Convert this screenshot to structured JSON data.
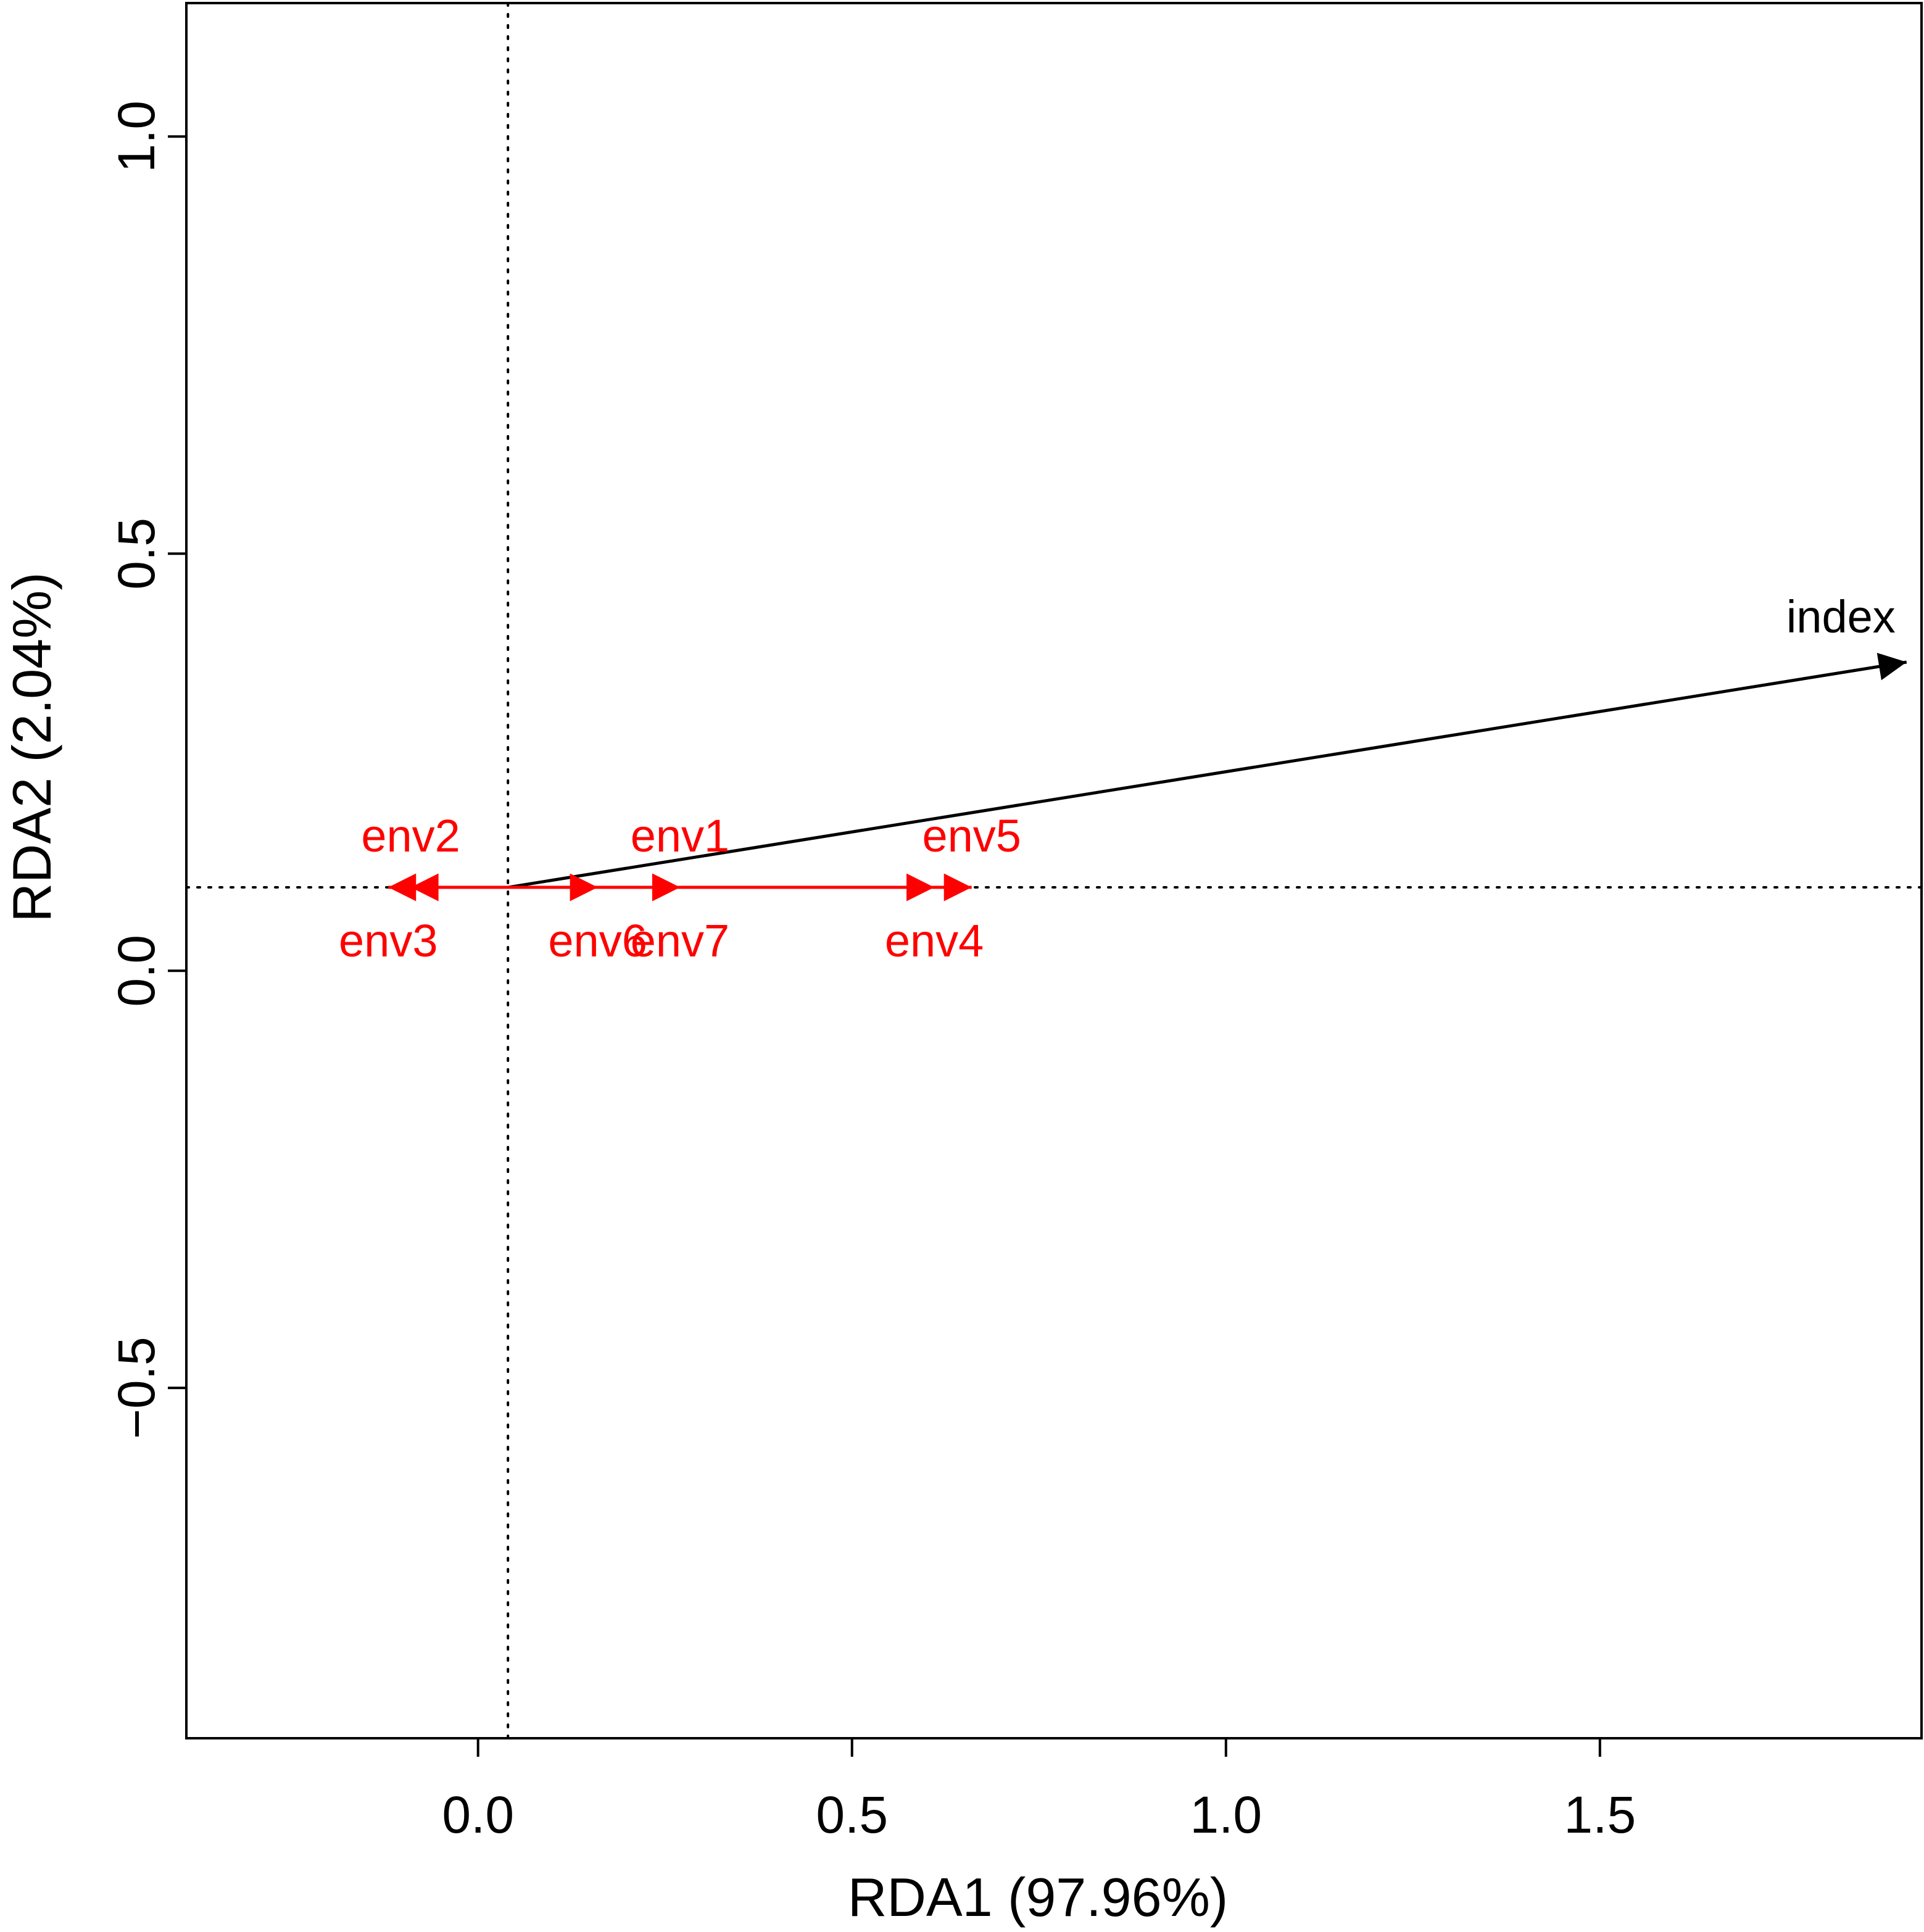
{
  "chart_data": {
    "type": "rda-biplot",
    "title": "",
    "xlabel": "RDA1 (97.96%)",
    "ylabel": "RDA2 (2.04%)",
    "xlim": [
      -0.39,
      1.93
    ],
    "ylim": [
      -0.92,
      1.16
    ],
    "xticks": [
      0.0,
      0.5,
      1.0,
      1.5
    ],
    "xtick_labels": [
      "0.0",
      "0.5",
      "1.0",
      "1.5"
    ],
    "yticks": [
      -0.5,
      0.0,
      0.5,
      1.0
    ],
    "ytick_labels": [
      "−0.5",
      "0.0",
      "0.5",
      "1.0"
    ],
    "grid": false,
    "origin": {
      "x": 0.04,
      "y": 0.1
    },
    "reference_lines": {
      "vertical_x": 0.04,
      "horizontal_y": 0.1,
      "style": "dotted"
    },
    "vectors": [
      {
        "name": "index",
        "label": "index",
        "group": "response",
        "x": 1.91,
        "y": 0.37,
        "color": "#000000",
        "label_anchor": "above-left"
      },
      {
        "name": "env1",
        "label": "env1",
        "group": "environment",
        "x": 0.27,
        "y": 0.1,
        "color": "#ff0000",
        "label_anchor": "above"
      },
      {
        "name": "env2",
        "label": "env2",
        "group": "environment",
        "x": -0.09,
        "y": 0.1,
        "color": "#ff0000",
        "label_anchor": "above"
      },
      {
        "name": "env3",
        "label": "env3",
        "group": "environment",
        "x": -0.12,
        "y": 0.1,
        "color": "#ff0000",
        "label_anchor": "below"
      },
      {
        "name": "env4",
        "label": "env4",
        "group": "environment",
        "x": 0.61,
        "y": 0.1,
        "color": "#ff0000",
        "label_anchor": "below"
      },
      {
        "name": "env5",
        "label": "env5",
        "group": "environment",
        "x": 0.66,
        "y": 0.1,
        "color": "#ff0000",
        "label_anchor": "above"
      },
      {
        "name": "env6",
        "label": "env6",
        "group": "environment",
        "x": 0.16,
        "y": 0.1,
        "color": "#ff0000",
        "label_anchor": "below"
      },
      {
        "name": "env7",
        "label": "env7",
        "group": "environment",
        "x": 0.27,
        "y": 0.1,
        "color": "#ff0000",
        "label_anchor": "below"
      }
    ]
  }
}
